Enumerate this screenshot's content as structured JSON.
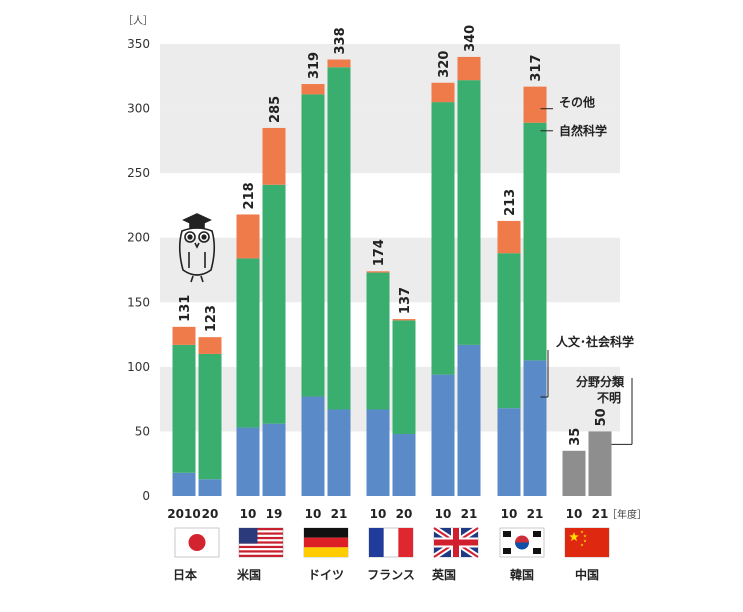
{
  "chart_data": {
    "type": "bar",
    "stacked": true,
    "unit_label": "［人］",
    "x_unit_label": "［年度］",
    "ylim": [
      0,
      350
    ],
    "yticks": [
      0,
      50,
      100,
      150,
      200,
      250,
      300,
      350
    ],
    "series_names": [
      "人文･社会科学",
      "自然科学",
      "その他",
      "分野分類不明"
    ],
    "colors": {
      "humanities": "#5b8ac9",
      "natural": "#3aae6e",
      "other": "#ef7b4a",
      "unknown": "#8e8e8e",
      "band": "#ececec"
    },
    "countries": [
      {
        "name": "日本",
        "flag": "japan-flag-icon",
        "bars": [
          {
            "year": "2010",
            "humanities": 18,
            "natural": 99,
            "other": 14,
            "unknown": 0,
            "total": "131"
          },
          {
            "year": "20",
            "humanities": 13,
            "natural": 97,
            "other": 13,
            "unknown": 0,
            "total": "123"
          }
        ]
      },
      {
        "name": "米国",
        "flag": "usa-flag-icon",
        "bars": [
          {
            "year": "10",
            "humanities": 53,
            "natural": 131,
            "other": 34,
            "unknown": 0,
            "total": "218"
          },
          {
            "year": "19",
            "humanities": 56,
            "natural": 185,
            "other": 44,
            "unknown": 0,
            "total": "285"
          }
        ]
      },
      {
        "name": "ドイツ",
        "flag": "germany-flag-icon",
        "bars": [
          {
            "year": "10",
            "humanities": 77,
            "natural": 234,
            "other": 8,
            "unknown": 0,
            "total": "319"
          },
          {
            "year": "21",
            "humanities": 67,
            "natural": 265,
            "other": 6,
            "unknown": 0,
            "total": "338"
          }
        ]
      },
      {
        "name": "フランス",
        "flag": "france-flag-icon",
        "bars": [
          {
            "year": "10",
            "humanities": 67,
            "natural": 106,
            "other": 1,
            "unknown": 0,
            "total": "174"
          },
          {
            "year": "20",
            "humanities": 48,
            "natural": 88,
            "other": 1,
            "unknown": 0,
            "total": "137"
          }
        ]
      },
      {
        "name": "英国",
        "flag": "uk-flag-icon",
        "bars": [
          {
            "year": "10",
            "humanities": 94,
            "natural": 211,
            "other": 15,
            "unknown": 0,
            "total": "320"
          },
          {
            "year": "21",
            "humanities": 117,
            "natural": 205,
            "other": 18,
            "unknown": 0,
            "total": "340"
          }
        ]
      },
      {
        "name": "韓国",
        "flag": "korea-flag-icon",
        "bars": [
          {
            "year": "10",
            "humanities": 68,
            "natural": 120,
            "other": 25,
            "unknown": 0,
            "total": "213"
          },
          {
            "year": "21",
            "humanities": 105,
            "natural": 184,
            "other": 28,
            "unknown": 0,
            "total": "317"
          }
        ]
      },
      {
        "name": "中国",
        "flag": "china-flag-icon",
        "bars": [
          {
            "year": "10",
            "humanities": 0,
            "natural": 0,
            "other": 0,
            "unknown": 35,
            "total": "35"
          },
          {
            "year": "21",
            "humanities": 0,
            "natural": 0,
            "other": 0,
            "unknown": 50,
            "total": "50"
          }
        ]
      }
    ],
    "annotations": {
      "other": "その他",
      "natural": "自然科学",
      "humanities": "人文･社会科学",
      "unknown_line1": "分野分類",
      "unknown_line2": "不明"
    },
    "grid_bands": true,
    "mascot_icon": "owl-graduate-icon"
  }
}
